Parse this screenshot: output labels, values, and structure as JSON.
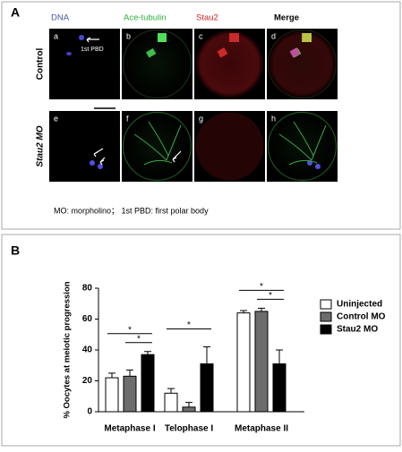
{
  "figure_a": {
    "panel_label": "A",
    "columns": [
      "DNA",
      "Ace-tubulin",
      "Stau2",
      "Merge"
    ],
    "rows": [
      "Control",
      "Stau2 MO"
    ],
    "subpanels": [
      "a",
      "b",
      "c",
      "d",
      "e",
      "f",
      "g",
      "h"
    ],
    "annotation": "1st PBD",
    "caption": "MO: morpholino； 1st PBD: first polar body"
  },
  "chart_data": {
    "type": "bar",
    "panel_label": "B",
    "ylabel": "% Oocytes at meiotic progression",
    "categories": [
      "Metaphase I",
      "Telophase I",
      "Metaphase II"
    ],
    "series": [
      {
        "name": "Uninjected",
        "color": "#ffffff",
        "values": [
          22,
          12,
          64
        ],
        "errors": [
          3,
          3,
          1.5
        ]
      },
      {
        "name": "Control MO",
        "color": "#6d6d6d",
        "values": [
          23,
          3,
          65
        ],
        "errors": [
          4,
          3,
          2
        ]
      },
      {
        "name": "Stau2 MO",
        "color": "#000000",
        "values": [
          37,
          31,
          31
        ],
        "errors": [
          2,
          11,
          9
        ]
      }
    ],
    "ylim": [
      0,
      80
    ],
    "yticks": [
      0,
      20,
      40,
      60,
      80
    ],
    "significance": [
      {
        "category": 0,
        "pair": [
          0,
          2
        ],
        "label": "*"
      },
      {
        "category": 0,
        "pair": [
          1,
          2
        ],
        "label": "*"
      },
      {
        "category": 1,
        "pair": [
          0,
          2
        ],
        "label": "*"
      },
      {
        "category": 2,
        "pair": [
          0,
          2
        ],
        "label": "*"
      },
      {
        "category": 2,
        "pair": [
          1,
          2
        ],
        "label": "*"
      }
    ]
  }
}
